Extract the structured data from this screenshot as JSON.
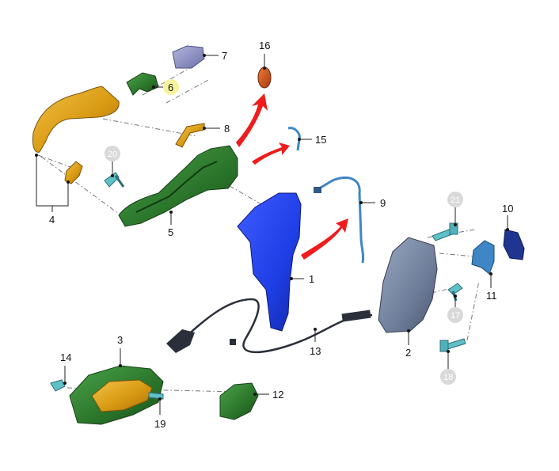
{
  "diagram": {
    "labels": {
      "p1": "1",
      "p2": "2",
      "p3": "3",
      "p4": "4",
      "p5": "5",
      "p6": "6",
      "p7": "7",
      "p8": "8",
      "p9": "9",
      "p10": "10",
      "p11": "11",
      "p12": "12",
      "p13": "13",
      "p14": "14",
      "p15": "15",
      "p16": "16",
      "p17": "17",
      "p18": "18",
      "p19": "19",
      "p20": "20",
      "p21": "21"
    },
    "highlighted_label": "6",
    "disabled_labels": [
      "17",
      "18",
      "20",
      "21"
    ],
    "colors": {
      "handle_gold": "#E0A019",
      "bracket_green": "#2E7A2E",
      "cap_lavender": "#8C8FC2",
      "cover_green": "#2B6A2B",
      "cable_blue": "#3E86C5",
      "lock_blue": "#1F3FE6",
      "latch_slate": "#6E7E9A",
      "striker_navy": "#20358F",
      "arrow_red": "#EE1C1C",
      "highlight_yellow": "#F6F39A",
      "disabled_grey": "#D9D9D9"
    }
  }
}
